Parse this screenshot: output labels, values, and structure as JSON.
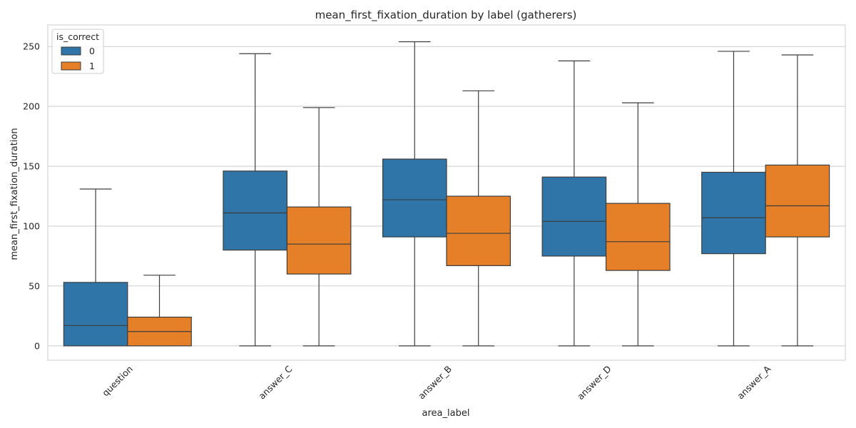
{
  "chart_data": {
    "type": "box",
    "title": "mean_first_fixation_duration by label (gatherers)",
    "xlabel": "area_label",
    "ylabel": "mean_first_fixation_duration",
    "categories": [
      "question",
      "answer_C",
      "answer_B",
      "answer_D",
      "answer_A"
    ],
    "ylim": [
      -12,
      268
    ],
    "yticks": [
      0,
      50,
      100,
      150,
      200,
      250
    ],
    "grid": true,
    "legend": {
      "title": "is_correct",
      "placement": "top-left"
    },
    "series": [
      {
        "name": "0",
        "color": "#2f75a8",
        "boxes": [
          {
            "whislo": 0,
            "q1": 0,
            "med": 17,
            "q3": 53,
            "whishi": 131
          },
          {
            "whislo": 0,
            "q1": 80,
            "med": 111,
            "q3": 146,
            "whishi": 244
          },
          {
            "whislo": 0,
            "q1": 91,
            "med": 122,
            "q3": 156,
            "whishi": 254
          },
          {
            "whislo": 0,
            "q1": 75,
            "med": 104,
            "q3": 141,
            "whishi": 238
          },
          {
            "whislo": 0,
            "q1": 77,
            "med": 107,
            "q3": 145,
            "whishi": 246
          }
        ]
      },
      {
        "name": "1",
        "color": "#e57f28",
        "boxes": [
          {
            "whislo": 0,
            "q1": 0,
            "med": 12,
            "q3": 24,
            "whishi": 59
          },
          {
            "whislo": 0,
            "q1": 60,
            "med": 85,
            "q3": 116,
            "whishi": 199
          },
          {
            "whislo": 0,
            "q1": 67,
            "med": 94,
            "q3": 125,
            "whishi": 213
          },
          {
            "whislo": 0,
            "q1": 63,
            "med": 87,
            "q3": 119,
            "whishi": 203
          },
          {
            "whislo": 0,
            "q1": 91,
            "med": 117,
            "q3": 151,
            "whishi": 243
          }
        ]
      }
    ]
  }
}
